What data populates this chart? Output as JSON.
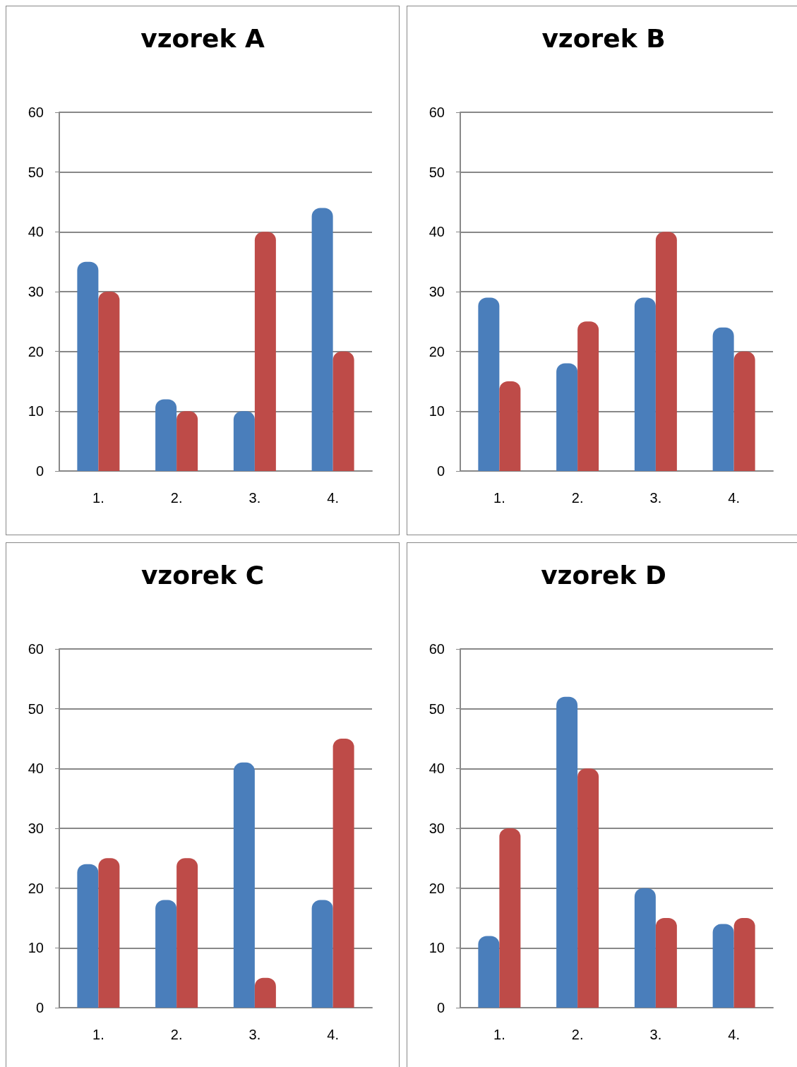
{
  "chart_data": [
    {
      "type": "bar",
      "title": "vzorek A",
      "categories": [
        "1.",
        "2.",
        "3.",
        "4."
      ],
      "series": [
        {
          "color": "#4a7ebb",
          "values": [
            35,
            12,
            10,
            44
          ]
        },
        {
          "color": "#be4b48",
          "values": [
            30,
            10,
            40,
            20
          ]
        }
      ],
      "ylim": [
        0,
        60
      ],
      "yticks": [
        0,
        10,
        20,
        30,
        40,
        50,
        60
      ],
      "grid": "y"
    },
    {
      "type": "bar",
      "title": "vzorek B",
      "categories": [
        "1.",
        "2.",
        "3.",
        "4."
      ],
      "series": [
        {
          "color": "#4a7ebb",
          "values": [
            29,
            18,
            29,
            24
          ]
        },
        {
          "color": "#be4b48",
          "values": [
            15,
            25,
            40,
            20
          ]
        }
      ],
      "ylim": [
        0,
        60
      ],
      "yticks": [
        0,
        10,
        20,
        30,
        40,
        50,
        60
      ],
      "grid": "y"
    },
    {
      "type": "bar",
      "title": "vzorek C",
      "categories": [
        "1.",
        "2.",
        "3.",
        "4."
      ],
      "series": [
        {
          "color": "#4a7ebb",
          "values": [
            24,
            18,
            41,
            18
          ]
        },
        {
          "color": "#be4b48",
          "values": [
            25,
            25,
            5,
            45
          ]
        }
      ],
      "ylim": [
        0,
        60
      ],
      "yticks": [
        0,
        10,
        20,
        30,
        40,
        50,
        60
      ],
      "grid": "y"
    },
    {
      "type": "bar",
      "title": "vzorek D",
      "categories": [
        "1.",
        "2.",
        "3.",
        "4."
      ],
      "series": [
        {
          "color": "#4a7ebb",
          "values": [
            12,
            52,
            20,
            14
          ]
        },
        {
          "color": "#be4b48",
          "values": [
            30,
            40,
            15,
            15
          ]
        }
      ],
      "ylim": [
        0,
        60
      ],
      "yticks": [
        0,
        10,
        20,
        30,
        40,
        50,
        60
      ],
      "grid": "y"
    }
  ]
}
